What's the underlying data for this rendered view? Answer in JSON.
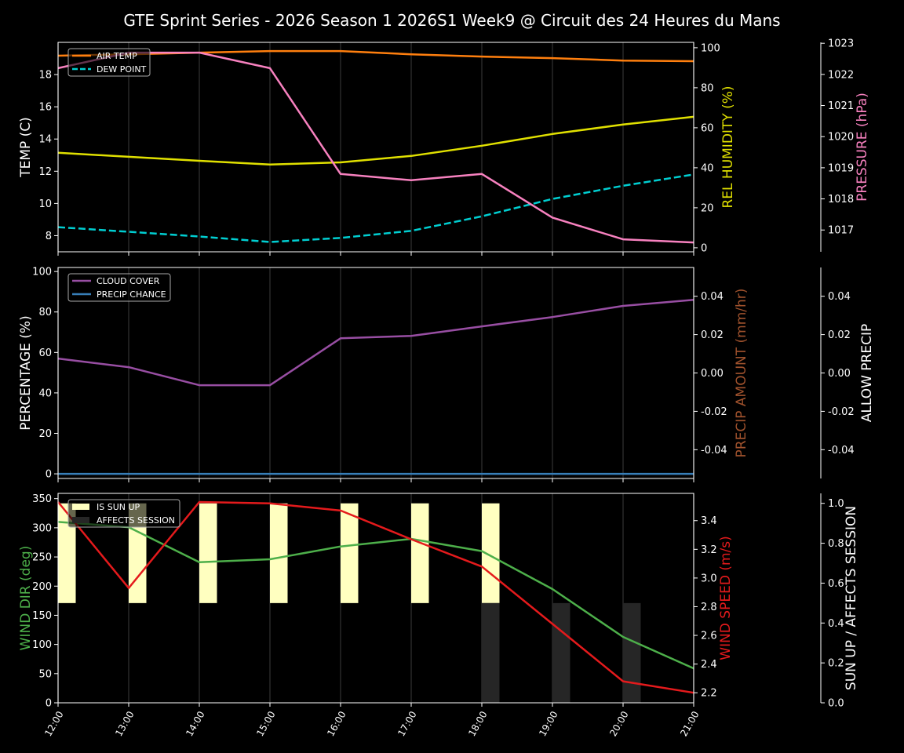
{
  "title": "GTE Sprint Series - 2026 Season 1 2026S1 Week9 @ Circuit des 24 Heures du Mans",
  "x_ticks": [
    "12:00",
    "13:00",
    "14:00",
    "15:00",
    "16:00",
    "17:00",
    "18:00",
    "19:00",
    "20:00",
    "21:00"
  ],
  "chart_data": [
    {
      "type": "line",
      "x": [
        "12:00",
        "13:00",
        "14:00",
        "15:00",
        "16:00",
        "17:00",
        "18:00",
        "19:00",
        "20:00",
        "21:00"
      ],
      "grid": "vertical",
      "legend": "top-left",
      "left_axis": {
        "label": "TEMP (C)",
        "color": "#ffffff",
        "ylim": [
          7.0,
          20.0
        ],
        "ticks": [
          8,
          10,
          12,
          14,
          16,
          18
        ]
      },
      "right_axes": [
        {
          "label": "REL HUMIDITY (%)",
          "color": "#e0e000",
          "ylim": [
            -2,
            102.7
          ],
          "ticks": [
            0,
            20,
            40,
            60,
            80,
            100
          ]
        },
        {
          "label": "PRESSURE (hPa)",
          "color": "#f781bf",
          "ylim": [
            1016.3,
            1023.03
          ],
          "ticks": [
            1017,
            1018,
            1019,
            1020,
            1021,
            1022,
            1023
          ]
        }
      ],
      "series": [
        {
          "name": "AIR TEMP",
          "axis": 0,
          "color": "#ff7f0e",
          "style": "solid",
          "values": [
            19.17,
            19.26,
            19.36,
            19.46,
            19.46,
            19.26,
            19.12,
            19.02,
            18.87,
            18.83
          ]
        },
        {
          "name": "DEW POINT",
          "axis": 0,
          "color": "#00ced1",
          "style": "dashed",
          "values": [
            8.53,
            8.24,
            7.95,
            7.61,
            7.86,
            8.3,
            9.2,
            10.28,
            11.1,
            11.8
          ]
        },
        {
          "axis": 1,
          "color": "#e0e000",
          "style": "solid",
          "values": [
            47.5,
            45.5,
            43.5,
            41.6,
            42.7,
            45.9,
            51.0,
            56.9,
            61.6,
            65.5
          ]
        },
        {
          "axis": 2,
          "color": "#f781bf",
          "style": "solid",
          "values": [
            1022.2,
            1022.7,
            1022.7,
            1022.2,
            1018.8,
            1018.6,
            1018.8,
            1017.4,
            1016.7,
            1016.6
          ]
        }
      ]
    },
    {
      "type": "line",
      "x": [
        "12:00",
        "13:00",
        "14:00",
        "15:00",
        "16:00",
        "17:00",
        "18:00",
        "19:00",
        "20:00",
        "21:00"
      ],
      "grid": "vertical",
      "legend": "top-left",
      "left_axis": {
        "label": "PERCENTAGE (%)",
        "color": "#ffffff",
        "ylim": [
          -2.3,
          102
        ],
        "ticks": [
          0,
          20,
          40,
          60,
          80,
          100
        ]
      },
      "right_axes": [
        {
          "label": "PRECIP AMOUNT (mm/hr)",
          "color": "#a0522d",
          "ylim": [
            -0.055,
            0.055
          ],
          "ticks": [
            "-0.04",
            "-0.02",
            "0.00",
            "0.02",
            "0.04"
          ]
        },
        {
          "label": "ALLOW PRECIP",
          "color": "#ffffff",
          "ylim": [
            -0.055,
            0.055
          ],
          "ticks": [
            "-0.04",
            "-0.02",
            "0.00",
            "0.02",
            "0.04"
          ]
        }
      ],
      "series": [
        {
          "name": "CLOUD COVER",
          "axis": 0,
          "color": "#984ea3",
          "style": "solid",
          "values": [
            57,
            52.7,
            43.8,
            43.8,
            67,
            68.2,
            72.9,
            77.5,
            83,
            86
          ]
        },
        {
          "name": "PRECIP CHANCE",
          "axis": 0,
          "color": "#377eb8",
          "style": "solid",
          "values": [
            0,
            0,
            0,
            0,
            0,
            0,
            0,
            0,
            0,
            0
          ]
        }
      ]
    },
    {
      "type": "line",
      "x": [
        "12:00",
        "13:00",
        "14:00",
        "15:00",
        "16:00",
        "17:00",
        "18:00",
        "19:00",
        "20:00",
        "21:00"
      ],
      "grid": "vertical",
      "legend": "top-left",
      "left_axis": {
        "label": "WIND DIR (deg)",
        "color": "#4daf4a",
        "ylim": [
          0,
          359
        ],
        "ticks": [
          0,
          50,
          100,
          150,
          200,
          250,
          300,
          350
        ]
      },
      "right_axes": [
        {
          "label": "WIND SPEED (m/s)",
          "color": "#e41a1c",
          "ylim": [
            2.13,
            3.59
          ],
          "ticks": [
            "2.2",
            "2.4",
            "2.6",
            "2.8",
            "3.0",
            "3.2",
            "3.4"
          ]
        },
        {
          "label": "SUN UP / AFFECTS SESSION",
          "color": "#ffffff",
          "ylim": [
            0,
            1.05
          ],
          "ticks": [
            "0.0",
            "0.2",
            "0.4",
            "0.6",
            "0.8",
            "1.0"
          ]
        }
      ],
      "series": [
        {
          "name": "IS SUN UP",
          "kind": "bar",
          "axis": 2,
          "color": "#ffffc0",
          "bottom": 0.5,
          "values": [
            1,
            1,
            1,
            1,
            1,
            1,
            1,
            0,
            0,
            0
          ]
        },
        {
          "name": "AFFECTS SESSION",
          "kind": "bar",
          "axis": 2,
          "color": "#262626",
          "bottom": 0,
          "values": [
            0,
            0,
            0,
            0,
            0,
            0,
            0.5,
            0.5,
            0.5,
            0
          ]
        },
        {
          "axis": 0,
          "color": "#4daf4a",
          "style": "solid",
          "values": [
            310,
            301,
            241,
            246,
            268,
            281,
            260,
            195,
            113,
            59
          ]
        },
        {
          "axis": 1,
          "color": "#e41a1c",
          "style": "solid",
          "values": [
            3.53,
            2.93,
            3.53,
            3.52,
            3.47,
            3.27,
            3.08,
            2.68,
            2.28,
            2.2
          ]
        }
      ]
    }
  ]
}
